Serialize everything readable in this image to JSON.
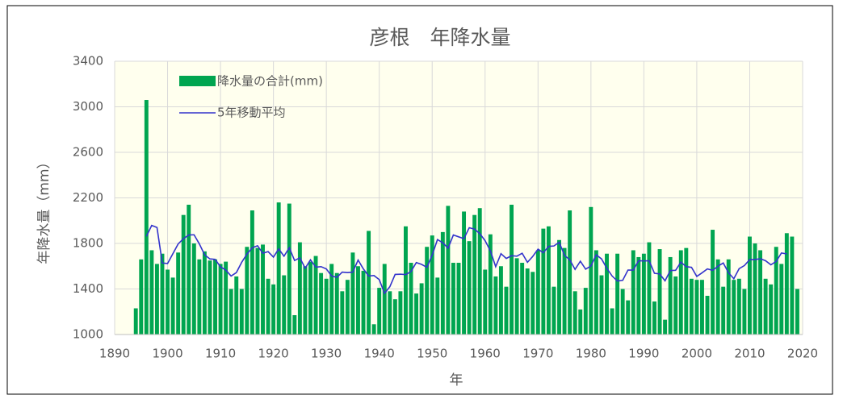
{
  "chart_data": {
    "type": "bar-line",
    "title": "彦根　年降水量",
    "x_label": "年",
    "y_label": "年降水量（mm）",
    "x": [
      1894,
      1895,
      1896,
      1897,
      1898,
      1899,
      1900,
      1901,
      1902,
      1903,
      1904,
      1905,
      1906,
      1907,
      1908,
      1909,
      1910,
      1911,
      1912,
      1913,
      1914,
      1915,
      1916,
      1917,
      1918,
      1919,
      1920,
      1921,
      1922,
      1923,
      1924,
      1925,
      1926,
      1927,
      1928,
      1929,
      1930,
      1931,
      1932,
      1933,
      1934,
      1935,
      1936,
      1937,
      1938,
      1939,
      1940,
      1941,
      1942,
      1943,
      1944,
      1945,
      1946,
      1947,
      1948,
      1949,
      1950,
      1951,
      1952,
      1953,
      1954,
      1955,
      1956,
      1957,
      1958,
      1959,
      1960,
      1961,
      1962,
      1963,
      1964,
      1965,
      1966,
      1967,
      1968,
      1969,
      1970,
      1971,
      1972,
      1973,
      1974,
      1975,
      1976,
      1977,
      1978,
      1979,
      1980,
      1981,
      1982,
      1983,
      1984,
      1985,
      1986,
      1987,
      1988,
      1989,
      1990,
      1991,
      1992,
      1993,
      1994,
      1995,
      1996,
      1997,
      1998,
      1999,
      2000,
      2001,
      2002,
      2003,
      2004,
      2005,
      2006,
      2007,
      2008,
      2009,
      2010,
      2011,
      2012,
      2013,
      2014,
      2015,
      2016,
      2017,
      2018,
      2019
    ],
    "series": [
      {
        "name": "降水量の合計(mm)",
        "type": "bar",
        "color": "#00a550",
        "values": [
          1230,
          1660,
          3060,
          1740,
          1620,
          1710,
          1570,
          1500,
          1720,
          2050,
          2140,
          1800,
          1660,
          1730,
          1650,
          1660,
          1620,
          1640,
          1400,
          1510,
          1400,
          1770,
          2090,
          1760,
          1790,
          1490,
          1440,
          2160,
          1520,
          2150,
          1170,
          1810,
          1600,
          1640,
          1690,
          1540,
          1490,
          1620,
          1540,
          1380,
          1480,
          1720,
          1600,
          1560,
          1910,
          1090,
          1410,
          1620,
          1380,
          1310,
          1380,
          1950,
          1630,
          1360,
          1450,
          1770,
          1870,
          1500,
          1900,
          2130,
          1630,
          1630,
          2080,
          1820,
          2050,
          2110,
          1570,
          1880,
          1510,
          1600,
          1420,
          2140,
          1670,
          1630,
          1580,
          1550,
          1740,
          1930,
          1950,
          1420,
          1830,
          1760,
          2090,
          1380,
          1220,
          1410,
          2120,
          1740,
          1520,
          1710,
          1230,
          1710,
          1400,
          1300,
          1740,
          1680,
          1710,
          1810,
          1290,
          1750,
          1130,
          1680,
          1510,
          1740,
          1760,
          1490,
          1480,
          1480,
          1340,
          1920,
          1660,
          1420,
          1660,
          1480,
          1490,
          1400,
          1860,
          1800,
          1740,
          1490,
          1440,
          1770,
          1620,
          1890,
          1860,
          1400
        ]
      },
      {
        "name": "5年移動平均",
        "type": "line",
        "color": "#3333cc",
        "values": [
          null,
          null,
          1862,
          1958,
          1940,
          1628,
          1624,
          1710,
          1796,
          1842,
          1874,
          1876,
          1796,
          1700,
          1664,
          1660,
          1594,
          1566,
          1514,
          1544,
          1634,
          1706,
          1762,
          1780,
          1714,
          1728,
          1680,
          1752,
          1688,
          1762,
          1650,
          1674,
          1582,
          1656,
          1592,
          1596,
          1576,
          1514,
          1502,
          1548,
          1544,
          1548,
          1654,
          1576,
          1514,
          1518,
          1482,
          1362,
          1420,
          1528,
          1530,
          1526,
          1554,
          1632,
          1616,
          1590,
          1698,
          1834,
          1806,
          1758,
          1874,
          1858,
          1842,
          1938,
          1926,
          1886,
          1824,
          1734,
          1596,
          1710,
          1668,
          1692,
          1688,
          1714,
          1634,
          1686,
          1750,
          1718,
          1774,
          1778,
          1810,
          1696,
          1656,
          1572,
          1644,
          1574,
          1602,
          1700,
          1664,
          1582,
          1514,
          1470,
          1476,
          1566,
          1566,
          1648,
          1646,
          1648,
          1538,
          1532,
          1472,
          1562,
          1564,
          1636,
          1596,
          1590,
          1510,
          1542,
          1576,
          1564,
          1600,
          1628,
          1542,
          1490,
          1578,
          1606,
          1658,
          1658,
          1666,
          1648,
          1612,
          1642,
          1716,
          1708,
          null,
          null
        ]
      }
    ],
    "xlim": [
      1890,
      2020
    ],
    "xticks": [
      1890,
      1900,
      1910,
      1920,
      1930,
      1940,
      1950,
      1960,
      1970,
      1980,
      1990,
      2000,
      2010,
      2020
    ],
    "ylim": [
      1000,
      3400
    ],
    "yticks": [
      1000,
      1400,
      1800,
      2200,
      2600,
      3000,
      3400
    ],
    "grid": true
  }
}
